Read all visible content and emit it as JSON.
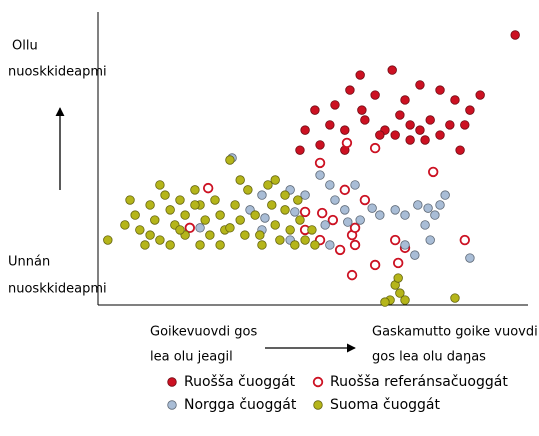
{
  "chart_data": {
    "type": "scatter",
    "y_axis_top": [
      "Ollu",
      "nuoskkideapmi"
    ],
    "y_axis_bottom": [
      "Unnán",
      "nuoskkideapmi"
    ],
    "x_axis_left": [
      "Goikevuovdi gos",
      "lea olu jeagil"
    ],
    "x_axis_right": [
      "Gaskamutto goike vuovdi",
      "gos lea olu daŋas"
    ],
    "xlim": [
      0,
      100
    ],
    "ylim": [
      0,
      100
    ],
    "series": [
      {
        "name": "Ruošša čuoggát",
        "color": "#cc1122",
        "marker": "filled",
        "x": [
          97.7,
          61.4,
          68.9,
          59.0,
          55.5,
          64.9,
          71.9,
          75.4,
          80.1,
          83.6,
          87.1,
          89.5,
          50.8,
          54.3,
          57.8,
          62.5,
          67.2,
          70.7,
          73.1,
          75.4,
          77.8,
          80.1,
          82.4,
          69.6,
          66.0,
          73.1,
          76.6,
          57.8,
          52.0,
          48.5,
          85.9,
          61.8,
          47.3,
          84.8
        ],
        "values": [
          93.1,
          79.3,
          81.0,
          74.1,
          69.0,
          72.4,
          70.7,
          75.9,
          74.1,
          70.7,
          67.2,
          72.4,
          67.2,
          62.1,
          60.3,
          63.8,
          60.3,
          65.5,
          62.1,
          60.3,
          63.8,
          58.6,
          62.1,
          58.6,
          58.6,
          56.9,
          56.9,
          53.4,
          55.2,
          60.3,
          62.1,
          67.2,
          53.4,
          53.4
        ]
      },
      {
        "name": "Ruošša referánsačuoggát",
        "color": "#cc1122",
        "marker": "hollow",
        "x": [
          25.8,
          52.0,
          58.3,
          64.9,
          57.8,
          52.5,
          48.5,
          62.5,
          55.0,
          59.5,
          60.2,
          56.7,
          52.0,
          69.6,
          64.9,
          71.9,
          70.3,
          78.5,
          85.9,
          21.5,
          59.5,
          60.2,
          48.5
        ],
        "values": [
          40.3,
          49.0,
          55.9,
          54.1,
          39.7,
          31.7,
          32.1,
          36.2,
          29.3,
          24.1,
          20.7,
          19.0,
          22.4,
          22.4,
          13.8,
          19.7,
          14.5,
          45.9,
          22.4,
          26.6,
          10.3,
          26.6,
          25.9
        ]
      },
      {
        "name": "Norgga čuoggát",
        "color": "#a9bdd6",
        "marker": "filled",
        "x": [
          31.4,
          52.0,
          54.3,
          55.5,
          60.2,
          45.0,
          46.1,
          38.4,
          35.6,
          39.1,
          45.0,
          53.2,
          54.3,
          58.5,
          64.2,
          69.6,
          71.9,
          74.9,
          77.3,
          80.1,
          81.3,
          78.9,
          76.6,
          77.8,
          71.9,
          74.2,
          66.0,
          61.4,
          38.4,
          48.5,
          87.1,
          23.9,
          57.8
        ],
        "values": [
          50.7,
          44.8,
          41.4,
          36.2,
          41.4,
          39.7,
          32.1,
          37.9,
          32.8,
          30.0,
          22.4,
          27.6,
          20.7,
          28.6,
          33.4,
          32.8,
          31.0,
          34.5,
          33.4,
          34.5,
          37.9,
          31.0,
          27.6,
          22.4,
          20.7,
          17.2,
          31.0,
          29.3,
          25.9,
          37.9,
          16.2,
          26.6,
          32.8
        ]
      },
      {
        "name": "Suoma čuoggát",
        "color": "#b5b51a",
        "marker": "filled",
        "x": [
          2.3,
          7.5,
          8.7,
          9.8,
          12.2,
          13.3,
          14.5,
          15.7,
          16.9,
          18.0,
          19.2,
          20.4,
          20.4,
          22.7,
          23.9,
          25.1,
          26.2,
          27.4,
          28.6,
          29.7,
          30.9,
          32.1,
          33.3,
          34.4,
          35.1,
          36.8,
          37.9,
          39.8,
          40.7,
          41.5,
          42.6,
          43.8,
          45.0,
          46.1,
          47.3,
          48.5,
          6.3,
          11.0,
          16.9,
          23.9,
          33.3,
          41.5,
          46.8,
          50.1,
          50.8,
          69.6,
          70.7,
          71.9,
          68.4,
          70.3,
          83.6,
          67.2,
          14.5,
          22.7,
          28.6,
          38.4,
          43.8,
          30.9,
          12.2,
          19.2
        ],
        "values": [
          22.4,
          36.2,
          31.0,
          25.9,
          34.5,
          29.3,
          22.4,
          37.9,
          32.8,
          27.6,
          36.2,
          31.0,
          24.1,
          39.7,
          34.5,
          29.3,
          24.1,
          36.2,
          31.0,
          25.9,
          50.0,
          34.5,
          29.3,
          24.1,
          39.7,
          31.0,
          24.1,
          41.4,
          34.5,
          27.6,
          22.4,
          32.8,
          25.9,
          20.7,
          29.3,
          22.4,
          27.6,
          20.7,
          20.7,
          20.7,
          43.1,
          43.1,
          36.2,
          25.9,
          20.7,
          6.9,
          4.1,
          1.7,
          1.7,
          9.3,
          2.4,
          1.0,
          41.4,
          34.5,
          20.7,
          20.7,
          37.9,
          26.6,
          24.1,
          25.9
        ]
      }
    ]
  }
}
